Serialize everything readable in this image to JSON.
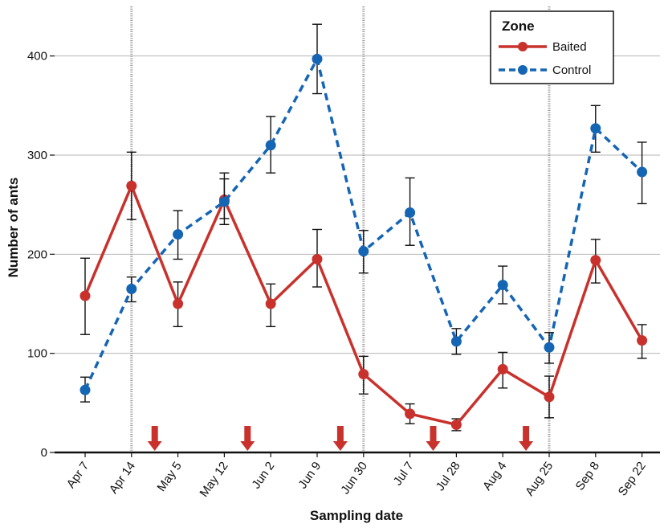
{
  "chart_data": {
    "type": "line",
    "xlabel": "Sampling date",
    "ylabel": "Number of ants",
    "categories": [
      "Apr 7",
      "Apr 14",
      "May 5",
      "May 12",
      "Jun 2",
      "Jun 9",
      "Jun 30",
      "Jul 7",
      "Jul 28",
      "Aug 4",
      "Aug 25",
      "Sep 8",
      "Sep 22"
    ],
    "ylim": [
      0,
      450
    ],
    "yticks": [
      0,
      100,
      200,
      300,
      400
    ],
    "grid": "horizontal",
    "legend": {
      "title": "Zone",
      "position": "top-right"
    },
    "series": [
      {
        "name": "Baited",
        "color": "#c8312c",
        "line_style": "solid",
        "values": [
          158,
          269,
          150,
          255,
          150,
          195,
          79,
          39,
          28,
          84,
          56,
          194,
          113
        ],
        "error_low": [
          119,
          235,
          127,
          230,
          127,
          167,
          59,
          29,
          22,
          65,
          35,
          171,
          95
        ],
        "error_high": [
          196,
          303,
          172,
          282,
          170,
          225,
          97,
          49,
          34,
          101,
          77,
          215,
          129
        ]
      },
      {
        "name": "Control",
        "color": "#1565b5",
        "line_style": "dashed",
        "values": [
          63,
          165,
          220,
          253,
          310,
          397,
          203,
          242,
          112,
          169,
          106,
          327,
          283
        ],
        "error_low": [
          51,
          152,
          195,
          236,
          282,
          362,
          181,
          209,
          99,
          150,
          90,
          303,
          251
        ],
        "error_high": [
          76,
          177,
          244,
          276,
          339,
          432,
          224,
          277,
          125,
          188,
          121,
          350,
          313
        ]
      }
    ],
    "vertical_reference_lines_between": [
      [
        "Apr 7",
        "Apr 14"
      ],
      [
        "Jun 9",
        "Jun 30"
      ],
      [
        "Aug 4",
        "Aug 25"
      ]
    ],
    "arrow_markers_at_x": [
      1.5,
      3.5,
      5.5,
      7.5,
      9.5
    ],
    "arrow_color": "#c8312c"
  }
}
